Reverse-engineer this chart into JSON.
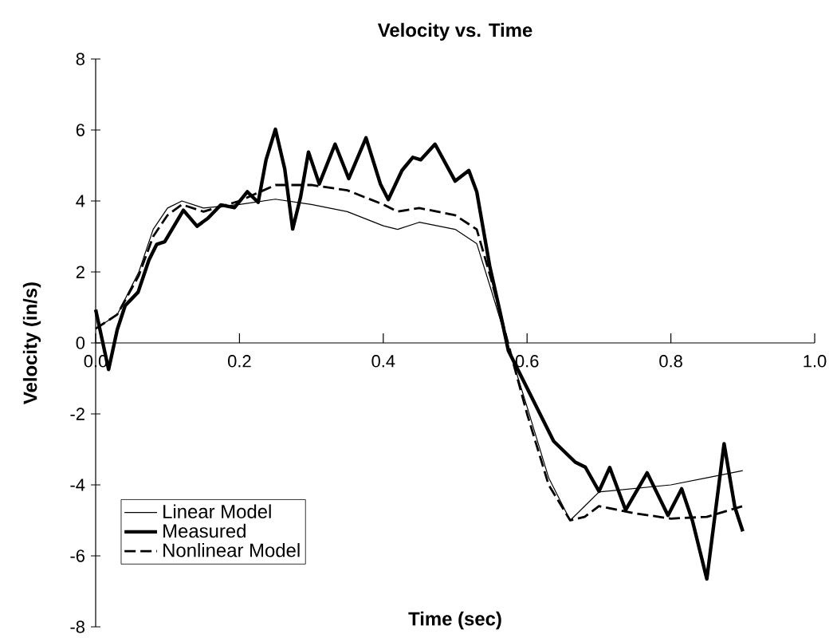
{
  "chart_data": {
    "type": "line",
    "title": "Velocity vs. Time",
    "xlabel": "Time (sec)",
    "ylabel": "Velocity (in/s)",
    "xlim": [
      0,
      1
    ],
    "xticks": [
      {
        "value": 0,
        "label": "0.0"
      },
      0.2,
      0.4,
      0.6,
      0.8,
      {
        "value": 1,
        "label": "1.0"
      }
    ],
    "ylim": [
      -8,
      8
    ],
    "yticks": [
      -8,
      -6,
      -4,
      -2,
      0,
      2,
      4,
      6,
      8
    ],
    "grid": false,
    "legend": "bottom left",
    "marker": "none",
    "series": [
      {
        "name": "Linear Model",
        "color": "#000000",
        "line_style": "solid",
        "x": [
          0,
          0.03,
          0.06,
          0.08,
          0.1,
          0.12,
          0.15,
          0.2,
          0.25,
          0.3,
          0.35,
          0.4,
          0.42,
          0.45,
          0.5,
          0.53,
          0.55,
          0.58,
          0.6,
          0.63,
          0.66,
          0.68,
          0.7,
          0.75,
          0.8,
          0.85,
          0.9
        ],
        "values": [
          0.4,
          0.8,
          2.0,
          3.2,
          3.8,
          4.0,
          3.8,
          3.9,
          4.05,
          3.9,
          3.7,
          3.3,
          3.2,
          3.4,
          3.2,
          2.8,
          1.5,
          -0.5,
          -1.8,
          -3.8,
          -5.0,
          -4.6,
          -4.2,
          -4.1,
          -4.0,
          -3.8,
          -3.6
        ]
      },
      {
        "name": "Measured",
        "color": "#000000",
        "line_style": "solid",
        "x": [
          0,
          0.018,
          0.03,
          0.041,
          0.059,
          0.074,
          0.085,
          0.096,
          0.111,
          0.122,
          0.141,
          0.156,
          0.174,
          0.193,
          0.211,
          0.226,
          0.237,
          0.25,
          0.263,
          0.274,
          0.285,
          0.296,
          0.311,
          0.333,
          0.352,
          0.376,
          0.396,
          0.407,
          0.426,
          0.441,
          0.452,
          0.472,
          0.5,
          0.519,
          0.53,
          0.548,
          0.563,
          0.574,
          0.6,
          0.637,
          0.667,
          0.681,
          0.7,
          0.715,
          0.737,
          0.767,
          0.796,
          0.815,
          0.83,
          0.85,
          0.874,
          0.889,
          0.9
        ],
        "values": [
          0.94,
          -0.75,
          0.37,
          1.05,
          1.43,
          2.33,
          2.78,
          2.85,
          3.36,
          3.74,
          3.29,
          3.51,
          3.89,
          3.81,
          4.26,
          3.96,
          5.16,
          6.02,
          4.9,
          3.21,
          4.11,
          5.38,
          4.48,
          5.6,
          4.63,
          5.78,
          4.48,
          4.04,
          4.86,
          5.23,
          5.16,
          5.6,
          4.56,
          4.86,
          4.26,
          2.17,
          0.82,
          -0.22,
          -1.27,
          -2.77,
          -3.36,
          -3.5,
          -4.18,
          -3.51,
          -4.71,
          -3.66,
          -4.86,
          -4.11,
          -5.01,
          -6.65,
          -2.84,
          -4.63,
          -5.31
        ]
      },
      {
        "name": "Nonlinear Model",
        "color": "#000000",
        "line_style": "dashed",
        "x": [
          0,
          0.03,
          0.06,
          0.08,
          0.1,
          0.12,
          0.15,
          0.2,
          0.25,
          0.3,
          0.35,
          0.4,
          0.42,
          0.45,
          0.5,
          0.53,
          0.55,
          0.58,
          0.6,
          0.63,
          0.66,
          0.68,
          0.7,
          0.75,
          0.8,
          0.85,
          0.9
        ],
        "values": [
          0.4,
          0.8,
          1.9,
          3.0,
          3.6,
          3.9,
          3.7,
          4.0,
          4.45,
          4.45,
          4.3,
          3.9,
          3.7,
          3.8,
          3.6,
          3.2,
          1.8,
          -0.5,
          -2.0,
          -4.0,
          -5.0,
          -4.9,
          -4.6,
          -4.8,
          -4.95,
          -4.9,
          -4.6
        ]
      }
    ]
  }
}
